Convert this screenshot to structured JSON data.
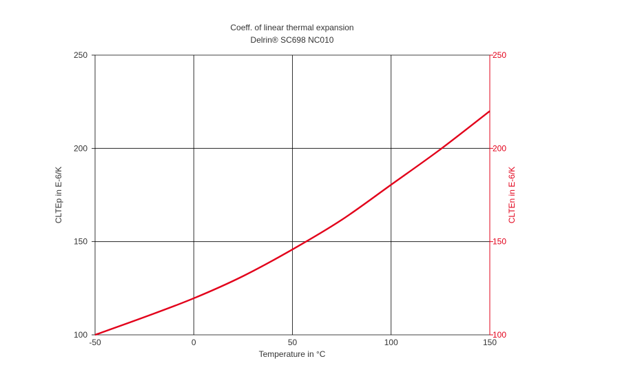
{
  "chart_data": {
    "type": "line",
    "title": "Coeff. of linear thermal expansion",
    "subtitle": "Delrin® SC698 NC010",
    "xlabel": "Temperature in °C",
    "ylabel_left": "CLTEp in E-6/K",
    "ylabel_right": "CLTEn in E-6/K",
    "xlim": [
      -50,
      150
    ],
    "ylim": [
      100,
      250
    ],
    "x_ticks": [
      -50,
      0,
      50,
      100,
      150
    ],
    "y_ticks": [
      100,
      150,
      200,
      250
    ],
    "y_ticks_right": [
      100,
      150,
      200,
      250
    ],
    "grid": true,
    "series": [
      {
        "color": "#e2001a",
        "x": [
          -50,
          -25,
          0,
          25,
          50,
          75,
          100,
          125,
          150
        ],
        "y": [
          100,
          109.5,
          119.6,
          131.5,
          145.8,
          161.7,
          180.5,
          199.5,
          220
        ]
      }
    ],
    "colors": {
      "right_axis": "#e2001a",
      "axis": "#000000",
      "text": "#333333"
    }
  }
}
